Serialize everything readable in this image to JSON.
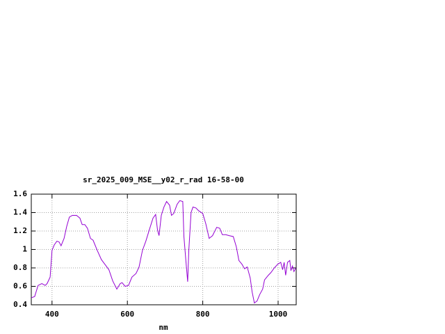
{
  "chart_data": {
    "type": "line",
    "title": "sr_2025_009_MSE__y02_r_rad 16-58-00",
    "x_label": "nm",
    "x": [
      345,
      354,
      363,
      373,
      382,
      387,
      395,
      400,
      406,
      413,
      419,
      424,
      432,
      439,
      446,
      454,
      465,
      474,
      480,
      487,
      494,
      502,
      509,
      520,
      531,
      542,
      551,
      561,
      572,
      581,
      586,
      594,
      603,
      612,
      623,
      631,
      640,
      649,
      658,
      668,
      675,
      680,
      684,
      690,
      697,
      704,
      712,
      717,
      723,
      732,
      739,
      747,
      750,
      756,
      760,
      763,
      769,
      774,
      782,
      789,
      800,
      808,
      817,
      826,
      837,
      845,
      852,
      861,
      870,
      881,
      889,
      896,
      904,
      911,
      918,
      926,
      931,
      937,
      944,
      951,
      959,
      964,
      974,
      981,
      990,
      999,
      1007,
      1012,
      1016,
      1020,
      1025,
      1031,
      1034,
      1038,
      1042,
      1047
    ],
    "series": [
      {
        "color": "#9400d3",
        "values": [
          0.475,
          0.49,
          0.61,
          0.63,
          0.61,
          0.63,
          0.7,
          0.99,
          1.05,
          1.09,
          1.08,
          1.04,
          1.12,
          1.25,
          1.35,
          1.37,
          1.37,
          1.34,
          1.27,
          1.27,
          1.23,
          1.12,
          1.1,
          0.99,
          0.89,
          0.83,
          0.78,
          0.66,
          0.57,
          0.63,
          0.64,
          0.6,
          0.61,
          0.7,
          0.74,
          0.81,
          0.99,
          1.09,
          1.21,
          1.34,
          1.38,
          1.21,
          1.15,
          1.37,
          1.46,
          1.52,
          1.48,
          1.37,
          1.39,
          1.49,
          1.53,
          1.52,
          1.14,
          0.84,
          0.65,
          0.99,
          1.4,
          1.46,
          1.45,
          1.42,
          1.39,
          1.28,
          1.12,
          1.15,
          1.24,
          1.23,
          1.16,
          1.16,
          1.15,
          1.14,
          1.03,
          0.88,
          0.84,
          0.79,
          0.81,
          0.69,
          0.54,
          0.42,
          0.44,
          0.51,
          0.57,
          0.67,
          0.72,
          0.75,
          0.8,
          0.84,
          0.86,
          0.78,
          0.86,
          0.72,
          0.86,
          0.88,
          0.77,
          0.82,
          0.76,
          0.8
        ]
      }
    ],
    "xlim": [
      345,
      1048
    ],
    "xticks": [
      400,
      600,
      800,
      1000
    ],
    "ylim": [
      0.4,
      1.6
    ],
    "yticks": [
      0.4,
      0.6,
      0.8,
      1,
      1.2,
      1.4,
      1.6
    ],
    "grid": true
  }
}
